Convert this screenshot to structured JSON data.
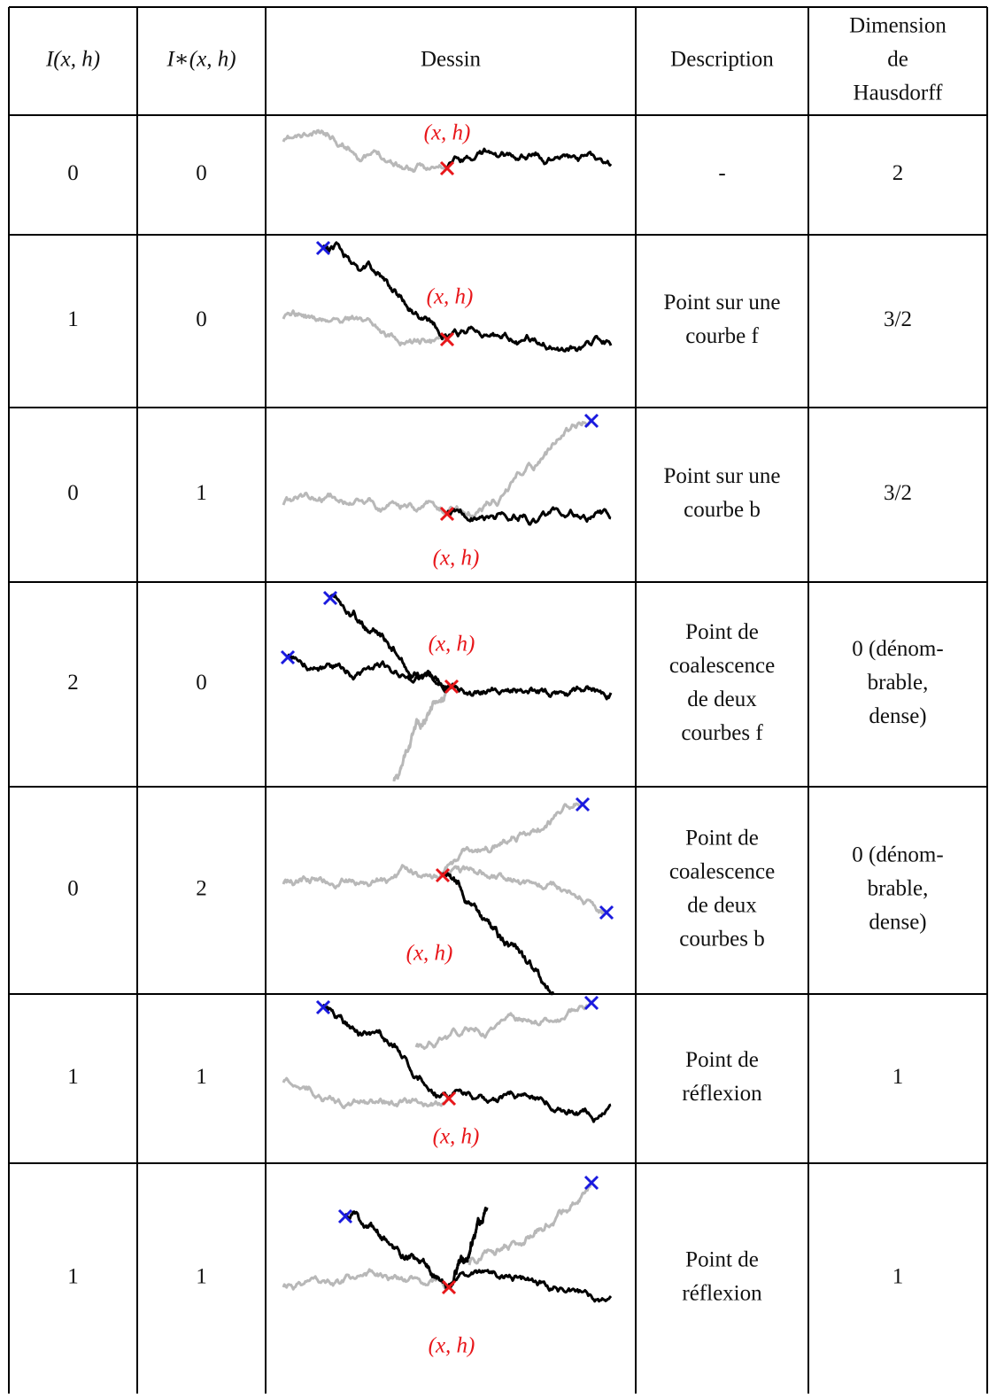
{
  "table": {
    "header": [
      "I(x, h)",
      "I∗(x, h)",
      "Dessin",
      "Description",
      [
        "Dimension",
        "de",
        "Hausdorff"
      ]
    ],
    "rows": [
      {
        "I": "0",
        "I_star": "0",
        "point_label": "(x, h)",
        "description": [
          "-"
        ],
        "dimension": [
          "2"
        ]
      },
      {
        "I": "1",
        "I_star": "0",
        "point_label": "(x, h)",
        "description": [
          "Point sur une",
          "courbe f"
        ],
        "dimension": [
          "3/2"
        ]
      },
      {
        "I": "0",
        "I_star": "1",
        "point_label": "(x, h)",
        "description": [
          "Point sur une",
          "courbe b"
        ],
        "dimension": [
          "3/2"
        ]
      },
      {
        "I": "2",
        "I_star": "0",
        "point_label": "(x, h)",
        "description": [
          "Point de",
          "coalescence",
          "de deux",
          "courbes f"
        ],
        "dimension": [
          "0 (dénom-",
          "brable,",
          "dense)"
        ]
      },
      {
        "I": "0",
        "I_star": "2",
        "point_label": "(x, h)",
        "description": [
          "Point de",
          "coalescence",
          "de deux",
          "courbes b"
        ],
        "dimension": [
          "0 (dénom-",
          "brable,",
          "dense)"
        ]
      },
      {
        "I": "1",
        "I_star": "1",
        "point_label": "(x, h)",
        "description": [
          "Point de",
          "réflexion"
        ],
        "dimension": [
          "1"
        ]
      },
      {
        "I": "1",
        "I_star": "1",
        "point_label": "(x, h)",
        "description": [
          "Point de",
          "réflexion"
        ],
        "dimension": [
          "1"
        ]
      }
    ]
  }
}
